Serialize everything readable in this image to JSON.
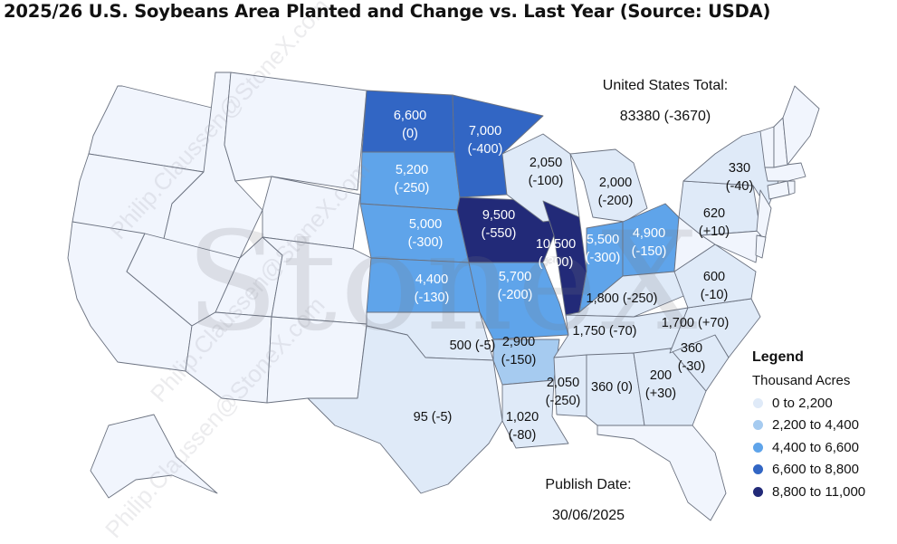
{
  "title": "2025/26 U.S. Soybeans Area Planted and Change vs. Last Year (Source: USDA)",
  "total": {
    "label": "United States Total:",
    "value": "83380 (-3670)"
  },
  "publish": {
    "label": "Publish Date:",
    "date": "30/06/2025"
  },
  "legend": {
    "title": "Legend",
    "subtitle": "Thousand Acres",
    "items": [
      {
        "label": "0 to 2,200",
        "color": "#dfeaf8"
      },
      {
        "label": "2,200 to 4,400",
        "color": "#a6cbf0"
      },
      {
        "label": "4,400 to 6,600",
        "color": "#5fa4ea"
      },
      {
        "label": "6,600 to 8,800",
        "color": "#3266c4"
      },
      {
        "label": "8,800 to 11,000",
        "color": "#222a78"
      }
    ]
  },
  "watermark": {
    "brand": "StoneX",
    "email": "Philip.Claussen@StoneX.com"
  },
  "states": [
    {
      "state": "ND",
      "area": "6,600",
      "change": "(0)"
    },
    {
      "state": "MN",
      "area": "7,000",
      "change": "(-400)"
    },
    {
      "state": "SD",
      "area": "5,200",
      "change": "(-250)"
    },
    {
      "state": "WI",
      "area": "2,050",
      "change": "(-100)"
    },
    {
      "state": "MI",
      "area": "2,000",
      "change": "(-200)"
    },
    {
      "state": "NE",
      "area": "5,000",
      "change": "(-300)"
    },
    {
      "state": "IA",
      "area": "9,500",
      "change": "(-550)"
    },
    {
      "state": "IL",
      "area": "10,500",
      "change": "(-300)"
    },
    {
      "state": "IN",
      "area": "5,500",
      "change": "(-300)"
    },
    {
      "state": "OH",
      "area": "4,900",
      "change": "(-150)"
    },
    {
      "state": "NY",
      "area": "330",
      "change": "(-40)"
    },
    {
      "state": "PA",
      "area": "620",
      "change": "(+10)"
    },
    {
      "state": "KS",
      "area": "4,400",
      "change": "(-130)"
    },
    {
      "state": "MO",
      "area": "5,700",
      "change": "(-200)"
    },
    {
      "state": "KY",
      "area": "1,800",
      "change": "(-250)"
    },
    {
      "state": "VA",
      "area": "600",
      "change": "(-10)"
    },
    {
      "state": "NC",
      "area": "1,700",
      "change": "(+70)"
    },
    {
      "state": "TN",
      "area": "1,750",
      "change": "(-70)"
    },
    {
      "state": "OK",
      "area": "500",
      "change": "(-5)"
    },
    {
      "state": "AR",
      "area": "2,900",
      "change": "(-150)"
    },
    {
      "state": "SC",
      "area": "360",
      "change": "(-30)"
    },
    {
      "state": "MS",
      "area": "2,050",
      "change": "(-250)"
    },
    {
      "state": "AL",
      "area": "360",
      "change": "(0)"
    },
    {
      "state": "GA",
      "area": "200",
      "change": "(+30)"
    },
    {
      "state": "TX",
      "area": "95",
      "change": "(-5)"
    },
    {
      "state": "LA",
      "area": "1,020",
      "change": "(-80)"
    }
  ]
}
